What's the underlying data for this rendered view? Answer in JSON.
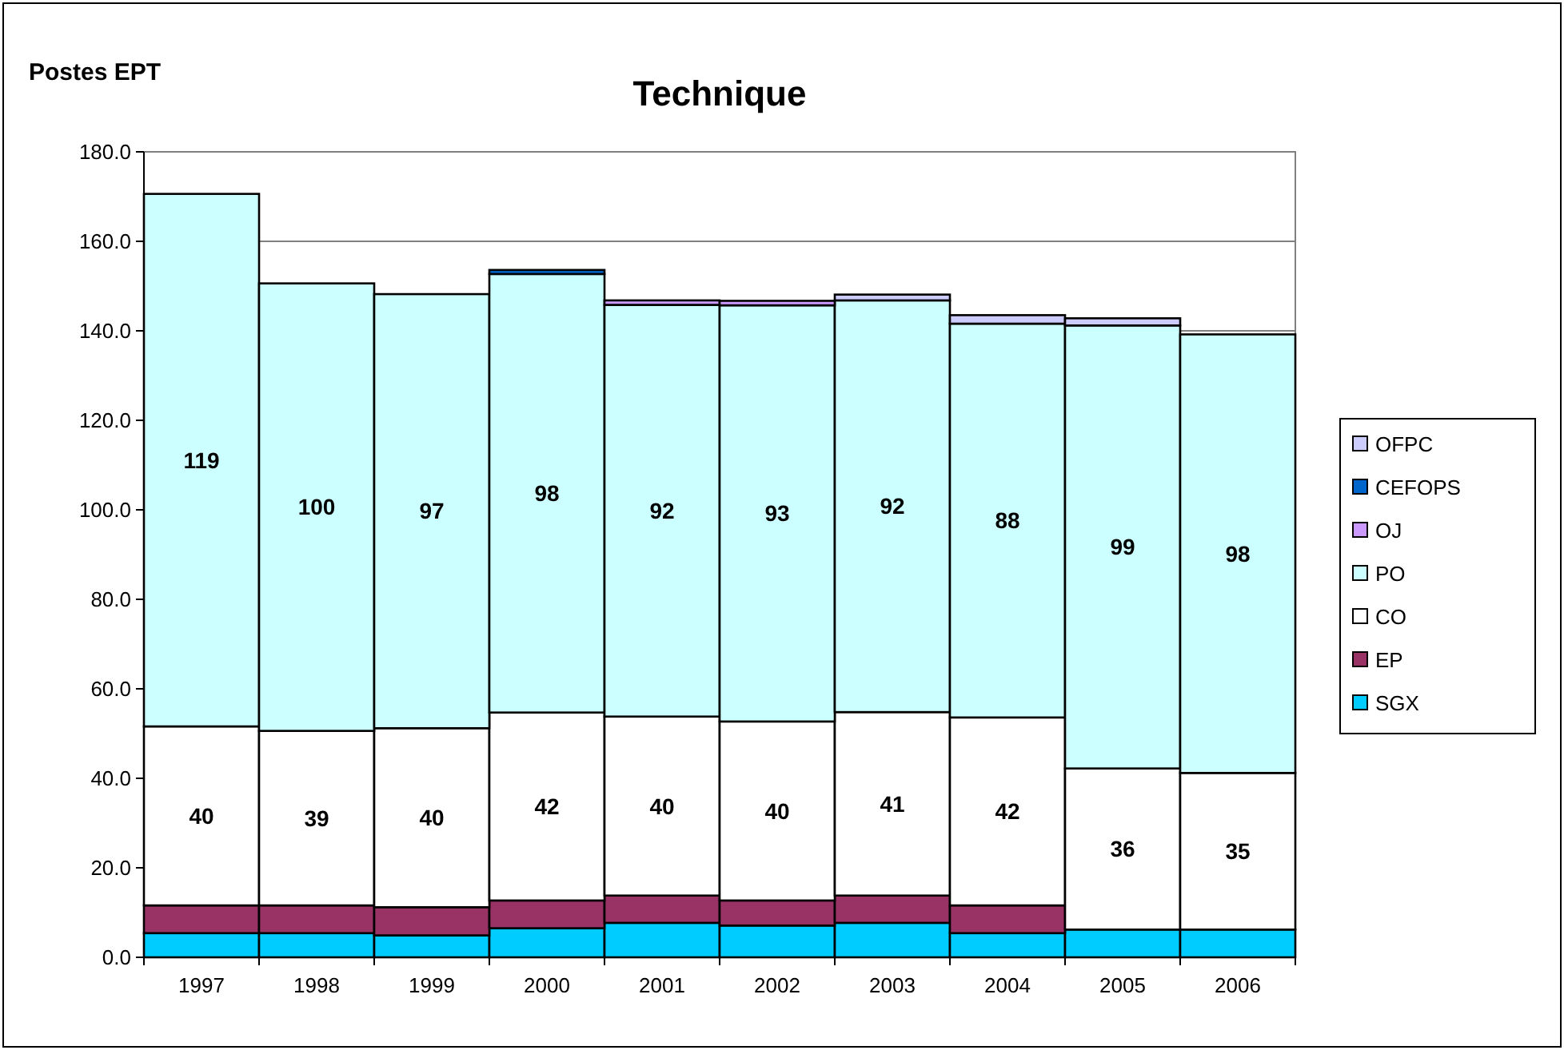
{
  "chart_data": {
    "type": "bar",
    "title": "Technique",
    "ylabel": "Postes EPT",
    "stacked": true,
    "grid": "y",
    "legend": "right",
    "categories": [
      "1997",
      "1998",
      "1999",
      "2000",
      "2001",
      "2002",
      "2003",
      "2004",
      "2005",
      "2006"
    ],
    "ylim": [
      0,
      180
    ],
    "yticks": [
      {
        "value": 0,
        "label": "0.0"
      },
      {
        "value": 20,
        "label": "20.0"
      },
      {
        "value": 40,
        "label": "40.0"
      },
      {
        "value": 60,
        "label": "60.0"
      },
      {
        "value": 80,
        "label": "80.0"
      },
      {
        "value": 100,
        "label": "100.0"
      },
      {
        "value": 120,
        "label": "120.0"
      },
      {
        "value": 140,
        "label": "140.0"
      },
      {
        "value": 160,
        "label": "160.0"
      },
      {
        "value": 180,
        "label": "180.0"
      }
    ],
    "series": [
      {
        "name": "SGX",
        "color": "#00ccff",
        "values": [
          5.4,
          5.4,
          4.9,
          6.5,
          7.7,
          7.1,
          7.7,
          5.4,
          6.2,
          6.2
        ]
      },
      {
        "name": "EP",
        "color": "#993366",
        "values": [
          6.2,
          6.2,
          6.3,
          6.2,
          6.1,
          5.6,
          6.1,
          6.2,
          0,
          0
        ]
      },
      {
        "name": "CO",
        "color": "#ffffff",
        "values": [
          40,
          39,
          40,
          42,
          40,
          40,
          41,
          42,
          36,
          35
        ],
        "value_labels": [
          "40",
          "39",
          "40",
          "42",
          "40",
          "40",
          "41",
          "42",
          "36",
          "35"
        ]
      },
      {
        "name": "PO",
        "color": "#ccffff",
        "values": [
          119,
          100,
          97,
          98,
          92,
          93,
          92,
          88,
          99,
          98
        ],
        "value_labels": [
          "119",
          "100",
          "97",
          "98",
          "92",
          "93",
          "92",
          "88",
          "99",
          "98"
        ]
      },
      {
        "name": "OJ",
        "color": "#cc99ff",
        "values": [
          0,
          0,
          0,
          0,
          1,
          1,
          0,
          0,
          0,
          0
        ]
      },
      {
        "name": "CEFOPS",
        "color": "#0066cc",
        "values": [
          0,
          0,
          0,
          0.9,
          0,
          0,
          null,
          0,
          0,
          0
        ]
      },
      {
        "name": "OFPC",
        "color": "#ccccff",
        "values": [
          0,
          0,
          0,
          0,
          0,
          0,
          1.3,
          1.9,
          1.6,
          0
        ]
      }
    ]
  }
}
